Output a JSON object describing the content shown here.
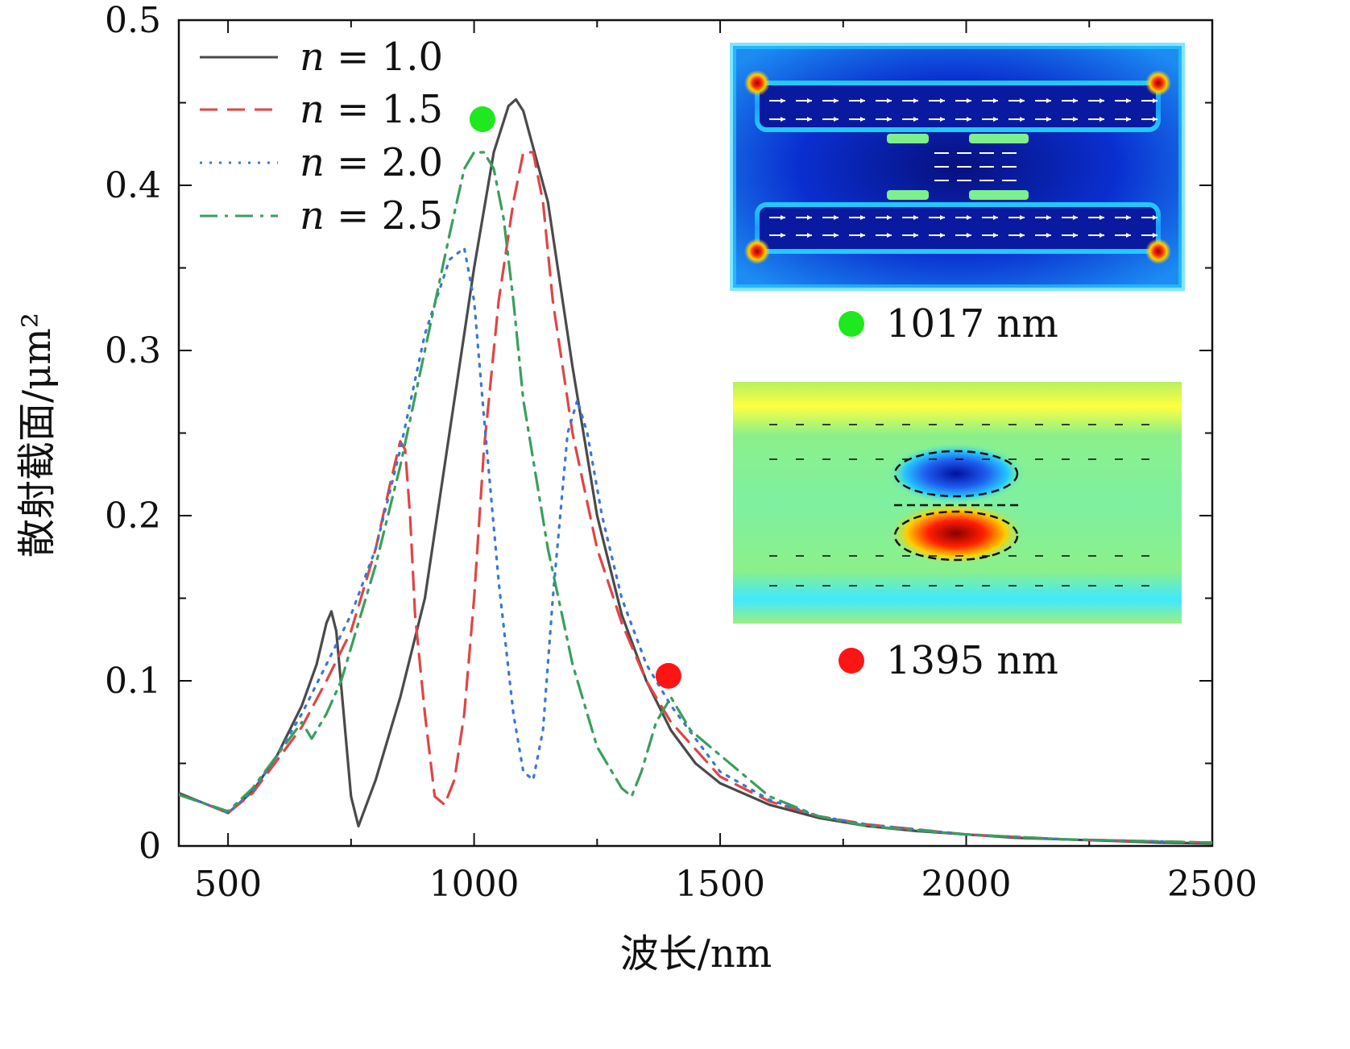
{
  "chart_data": {
    "type": "line",
    "xlabel": "波长/nm",
    "ylabel": "散射截面/μm²",
    "xlim": [
      400,
      2500
    ],
    "ylim": [
      0,
      0.5
    ],
    "xticks": [
      500,
      1000,
      1500,
      2000,
      2500
    ],
    "yticks": [
      0,
      0.1,
      0.2,
      0.3,
      0.4,
      0.5
    ],
    "xtick_labels": [
      "500",
      "1000",
      "1500",
      "2000",
      "2500"
    ],
    "ytick_labels": [
      "0",
      "0.1",
      "0.2",
      "0.3",
      "0.4",
      "0.5"
    ],
    "legend_position": "top-left",
    "series": [
      {
        "name": "n = 1.0",
        "legend_var": "n",
        "legend_eq": " = 1.0",
        "color": "#4a4a4a",
        "dash": "solid",
        "x": [
          400,
          450,
          500,
          550,
          600,
          650,
          680,
          700,
          710,
          720,
          735,
          750,
          765,
          800,
          850,
          900,
          950,
          1000,
          1040,
          1070,
          1085,
          1100,
          1150,
          1200,
          1250,
          1300,
          1350,
          1400,
          1450,
          1500,
          1600,
          1700,
          1800,
          1900,
          2000,
          2100,
          2200,
          2300,
          2400,
          2500
        ],
        "y": [
          0.032,
          0.026,
          0.02,
          0.033,
          0.055,
          0.085,
          0.11,
          0.135,
          0.142,
          0.13,
          0.08,
          0.03,
          0.012,
          0.04,
          0.09,
          0.15,
          0.25,
          0.35,
          0.42,
          0.448,
          0.452,
          0.445,
          0.39,
          0.29,
          0.2,
          0.14,
          0.1,
          0.07,
          0.05,
          0.038,
          0.025,
          0.017,
          0.012,
          0.009,
          0.007,
          0.005,
          0.004,
          0.003,
          0.002,
          0.0015
        ]
      },
      {
        "name": "n = 1.5",
        "legend_var": "n",
        "legend_eq": " = 1.5",
        "color": "#e04545",
        "dash": "dashed",
        "x": [
          400,
          450,
          500,
          550,
          600,
          650,
          700,
          750,
          800,
          830,
          850,
          860,
          870,
          880,
          900,
          920,
          940,
          960,
          980,
          1000,
          1020,
          1050,
          1080,
          1100,
          1120,
          1140,
          1160,
          1200,
          1250,
          1300,
          1350,
          1400,
          1500,
          1600,
          1700,
          1800,
          2000,
          2200,
          2500
        ],
        "y": [
          0.031,
          0.026,
          0.02,
          0.032,
          0.052,
          0.072,
          0.1,
          0.13,
          0.18,
          0.22,
          0.245,
          0.24,
          0.2,
          0.14,
          0.08,
          0.03,
          0.025,
          0.04,
          0.08,
          0.15,
          0.24,
          0.33,
          0.39,
          0.42,
          0.42,
          0.39,
          0.33,
          0.25,
          0.18,
          0.135,
          0.1,
          0.075,
          0.042,
          0.027,
          0.018,
          0.013,
          0.007,
          0.004,
          0.002
        ]
      },
      {
        "name": "n = 2.0",
        "legend_var": "n",
        "legend_eq": " = 2.0",
        "color": "#3b78cf",
        "dash": "dotted",
        "x": [
          400,
          450,
          500,
          550,
          600,
          650,
          700,
          750,
          800,
          850,
          900,
          950,
          980,
          1000,
          1020,
          1050,
          1080,
          1100,
          1120,
          1140,
          1160,
          1190,
          1210,
          1230,
          1260,
          1300,
          1350,
          1400,
          1500,
          1600,
          1700,
          1800,
          2000,
          2200,
          2500
        ],
        "y": [
          0.031,
          0.026,
          0.02,
          0.033,
          0.055,
          0.08,
          0.11,
          0.14,
          0.18,
          0.24,
          0.31,
          0.355,
          0.362,
          0.33,
          0.26,
          0.16,
          0.08,
          0.045,
          0.04,
          0.07,
          0.15,
          0.25,
          0.27,
          0.25,
          0.2,
          0.15,
          0.11,
          0.085,
          0.045,
          0.028,
          0.018,
          0.013,
          0.007,
          0.004,
          0.002
        ]
      },
      {
        "name": "n = 2.5",
        "legend_var": "n",
        "legend_eq": " = 2.5",
        "color": "#3a9e5c",
        "dash": "dashdot",
        "x": [
          400,
          450,
          500,
          550,
          600,
          650,
          670,
          700,
          730,
          750,
          800,
          850,
          900,
          950,
          980,
          1000,
          1020,
          1040,
          1060,
          1080,
          1100,
          1150,
          1200,
          1250,
          1300,
          1320,
          1340,
          1370,
          1400,
          1440,
          1500,
          1600,
          1700,
          1800,
          2000,
          2200,
          2500
        ],
        "y": [
          0.031,
          0.026,
          0.021,
          0.035,
          0.055,
          0.075,
          0.065,
          0.08,
          0.1,
          0.12,
          0.17,
          0.23,
          0.3,
          0.37,
          0.41,
          0.42,
          0.42,
          0.41,
          0.38,
          0.33,
          0.27,
          0.18,
          0.11,
          0.06,
          0.035,
          0.03,
          0.045,
          0.075,
          0.09,
          0.07,
          0.055,
          0.03,
          0.018,
          0.012,
          0.007,
          0.004,
          0.002
        ]
      }
    ],
    "markers": [
      {
        "x": 1017,
        "y": 0.44,
        "color": "#1ee81e",
        "label": "1017 nm"
      },
      {
        "x": 1395,
        "y": 0.103,
        "color": "#ff1414",
        "label": "1395 nm"
      }
    ]
  }
}
